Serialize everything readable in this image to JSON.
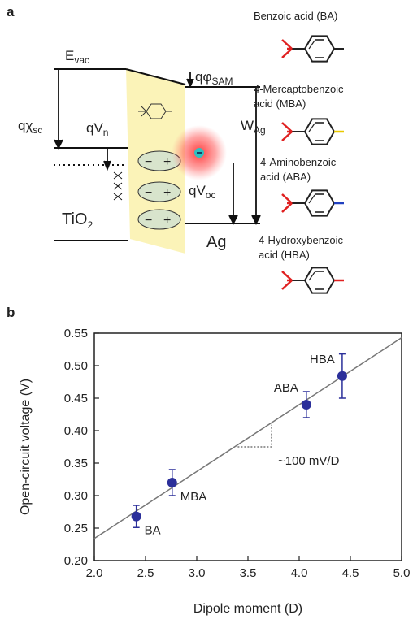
{
  "panel_a": {
    "label": "a",
    "e_vac": {
      "main": "E",
      "sub": "vac"
    },
    "q_chi_sc": {
      "main": "qχ",
      "sub": "sc"
    },
    "q_v_n": {
      "main": "qV",
      "sub": "n"
    },
    "tio2": {
      "main": "TiO",
      "sub": "2"
    },
    "q_phi_sam": {
      "main": "qφ",
      "sub": "SAM"
    },
    "w_ag": {
      "main": "W",
      "sub": "Ag"
    },
    "q_v_oc": {
      "main": "qV",
      "sub": "oc"
    },
    "ag": "Ag",
    "molecules": [
      [
        "Benzoic acid (BA)"
      ],
      [
        "4-Mercaptobenzoic",
        "acid (MBA)"
      ],
      [
        "4-Aminobenzoic",
        "acid (ABA)"
      ],
      [
        "4-Hydroxybenzoic",
        "acid (HBA)"
      ]
    ]
  },
  "chart_data": {
    "type": "scatter",
    "panel_label": "b",
    "x_label": "Dipole moment (D)",
    "y_label": "Open-circuit voltage (V)",
    "xlim": [
      2.0,
      5.0
    ],
    "ylim": [
      0.2,
      0.55
    ],
    "xticks": [
      {
        "value": 2,
        "label": "2.0"
      },
      2.5,
      {
        "value": 3,
        "label": "3.0"
      },
      3.5,
      {
        "value": 4,
        "label": "4.0"
      },
      4.5,
      {
        "value": 5,
        "label": "5.0"
      }
    ],
    "yticks": [
      {
        "value": 0.2,
        "label": "0.20"
      },
      0.25,
      {
        "value": 0.3,
        "label": "0.30"
      },
      0.35,
      {
        "value": 0.4,
        "label": "0.40"
      },
      0.45,
      {
        "value": 0.5,
        "label": "0.50"
      },
      0.55
    ],
    "series": [
      {
        "color": "#2b2f9a",
        "x": [
          2.41,
          2.76,
          4.07,
          4.42
        ],
        "values": [
          0.268,
          0.32,
          0.44,
          0.484
        ],
        "errors": [
          0.017,
          0.02,
          0.02,
          0.034
        ],
        "point_labels": [
          "BA",
          "MBA",
          "ABA",
          "HBA"
        ]
      }
    ],
    "fit_line": {
      "x": [
        2.0,
        5.0
      ],
      "y": [
        0.234,
        0.543
      ]
    },
    "slope_marker": {
      "x": [
        3.4,
        3.73,
        3.73
      ],
      "y": [
        0.375,
        0.375,
        0.409
      ]
    },
    "annotation": "~100 mV/D"
  }
}
